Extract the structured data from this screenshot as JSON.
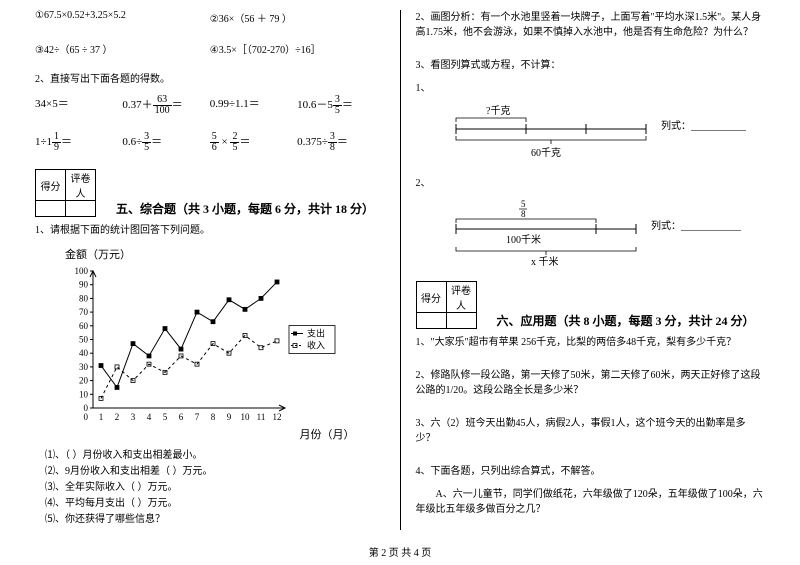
{
  "left": {
    "problems1": {
      "p1": "①67.5×0.52+3.25×5.2",
      "p2": "②36×（56 ＋ 79 ）",
      "p3": "③42÷（65 ÷ 37 ）",
      "p4": "④3.5×［（702-270）÷16］"
    },
    "q2_title": "2、直接写出下面各题的得数。",
    "problems2": {
      "r1c1": "34×5＝",
      "r1c2_a": "0.37＋",
      "r1c2_frac_n": "63",
      "r1c2_frac_d": "100",
      "r1c2_b": "＝",
      "r1c3": "0.99÷1.1＝",
      "r1c4_a": "10.6－5",
      "r1c4_frac_n": "3",
      "r1c4_frac_d": "5",
      "r1c4_b": "＝",
      "r2c1_a": "1÷1",
      "r2c1_frac_n": "1",
      "r2c1_frac_d": "9",
      "r2c1_b": "＝",
      "r2c2_a": "0.6÷",
      "r2c2_frac_n": "3",
      "r2c2_frac_d": "5",
      "r2c2_b": "＝",
      "r2c3_a": "",
      "r2c3_f1n": "5",
      "r2c3_f1d": "6",
      "r2c3_mid": " × ",
      "r2c3_f2n": "2",
      "r2c3_f2d": "5",
      "r2c3_b": "＝",
      "r2c4_a": "0.375÷",
      "r2c4_frac_n": "3",
      "r2c4_frac_d": "8",
      "r2c4_b": "＝"
    },
    "score_labels": {
      "score": "得分",
      "grader": "评卷人"
    },
    "section5_title": "五、综合题（共 3 小题，每题 6 分，共计 18 分）",
    "q5_1": "1、请根据下面的统计图回答下列问题。",
    "chart": {
      "y_title": "金额（万元）",
      "x_title": "月份（月）",
      "ylim": [
        0,
        100
      ],
      "ytick_step": 10,
      "xvals": [
        1,
        2,
        3,
        4,
        5,
        6,
        7,
        8,
        9,
        10,
        11,
        12
      ],
      "series": [
        {
          "name": "支出",
          "style": "solid",
          "marker": "square_filled",
          "color": "#000000",
          "values": [
            31,
            15,
            47,
            38,
            58,
            43,
            70,
            63,
            79,
            72,
            80,
            92
          ]
        },
        {
          "name": "收入",
          "style": "dashed",
          "marker": "square_open",
          "color": "#000000",
          "values": [
            7,
            30,
            20,
            32,
            26,
            38,
            32,
            47,
            40,
            53,
            44,
            49
          ]
        }
      ],
      "legend": {
        "expense": "支出",
        "income": "收入"
      },
      "background": "#ffffff"
    },
    "sub_questions": {
      "s1": "⑴、（  ）月份收入和支出相差最小。",
      "s2": "⑵、9月份收入和支出相差（  ）万元。",
      "s3": "⑶、全年实际收入（  ）万元。",
      "s4": "⑷、平均每月支出（  ）万元。",
      "s5": "⑸、你还获得了哪些信息？"
    }
  },
  "right": {
    "q2": "2、画图分析：有一个水池里竖着一块牌子，上面写着\"平均水深1.5米\"。某人身高1.75米，他不会游泳，如果不慎掉入水池中，他是否有生命危险？为什么？",
    "q3_title": "3、看图列算式或方程，不计算：",
    "d1": {
      "num": "1、",
      "top": "?千克",
      "bottom": "60千克",
      "expr": "列式：____________"
    },
    "d2": {
      "num": "2、",
      "frac_n": "5",
      "frac_d": "8",
      "mid": "100千米",
      "bottom": "x 千米",
      "expr": "列式：____________"
    },
    "score_labels": {
      "score": "得分",
      "grader": "评卷人"
    },
    "section6_title": "六、应用题（共 8 小题，每题 3 分，共计 24 分）",
    "q6_1": "1、\"大家乐\"超市有苹果 256千克，比梨的两倍多48千克，梨有多少千克？",
    "q6_2": "2、修路队修一段公路，第一天修了50米，第二天修了60米，两天正好修了这段公路的1/20。这段公路全长是多少米？",
    "q6_3": "3、六（2）班今天出勤45人，病假2人，事假1人，这个班今天的出勤率是多少？",
    "q6_4": "4、下面各题，只列出综合算式，不解答。",
    "q6_4a": "　　A、六一儿童节，同学们做纸花，六年级做了120朵，五年级做了100朵，六年级比五年级多做百分之几？"
  },
  "footer": "第 2 页 共 4 页"
}
